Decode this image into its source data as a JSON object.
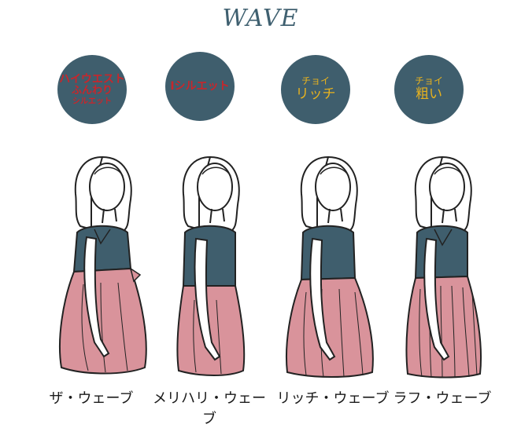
{
  "title": "WAVE",
  "badges": [
    {
      "line1": "ハイウエスト",
      "line2": "ふんわり",
      "line3": "シルエット"
    },
    {
      "line1": "Iシルエット"
    },
    {
      "line1": "チョイ",
      "line2": "リッチ"
    },
    {
      "line1": "チョイ",
      "line2": "粗い"
    }
  ],
  "captions": [
    "ザ・ウェーブ",
    "メリハリ・ウェーブ",
    "リッチ・ウェーブ",
    "ラフ・ウェーブ"
  ],
  "colors": {
    "badge_bg": "#3f5e6d",
    "top": "#3f5e6d",
    "skirt": "#d9939b",
    "badge_text_red": "#c8262b",
    "badge_text_gold": "#e8b21e"
  }
}
